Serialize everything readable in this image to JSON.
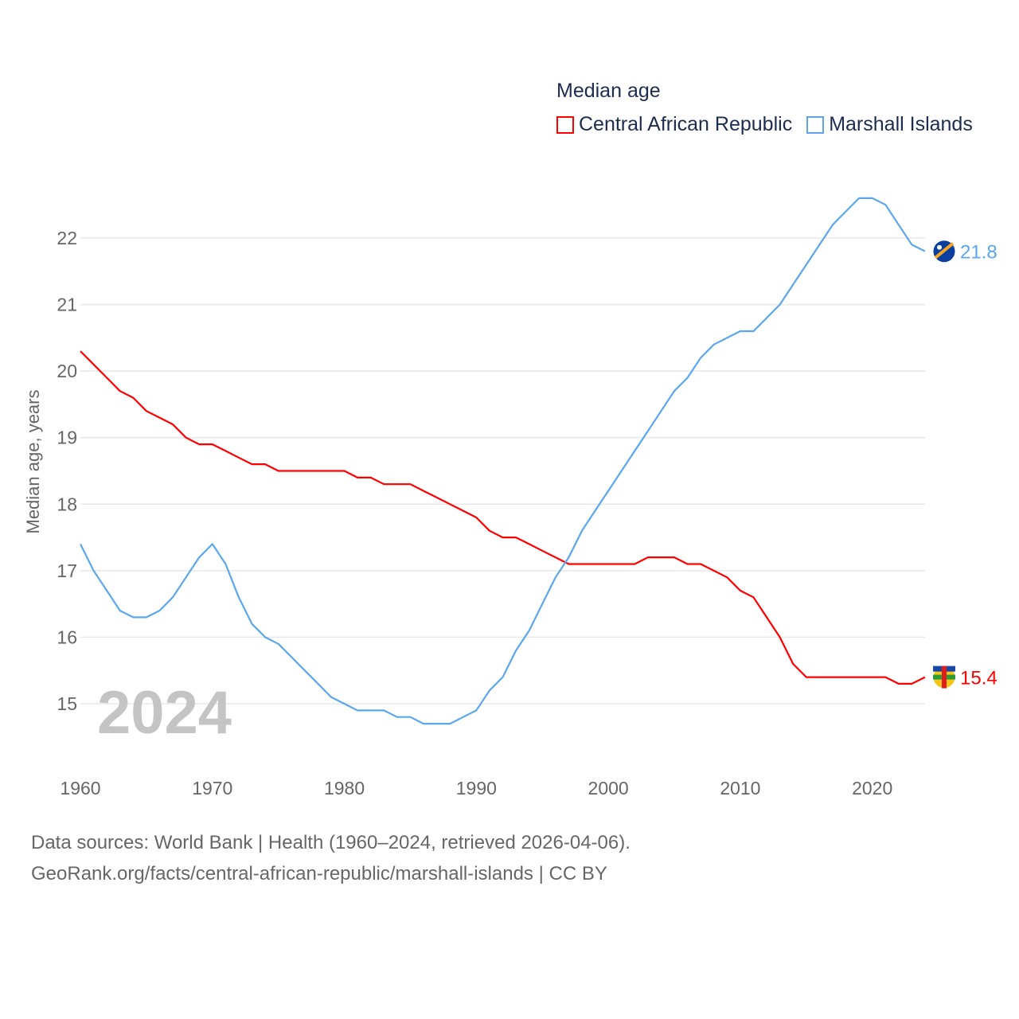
{
  "chart_data": {
    "type": "line",
    "title": "Median age",
    "ylabel": "Median age, years",
    "xlabel": "",
    "xlim": [
      1960,
      2024
    ],
    "ylim": [
      14.3,
      22.8
    ],
    "yticks": [
      15,
      16,
      17,
      18,
      19,
      20,
      21,
      22
    ],
    "xticks": [
      1960,
      1970,
      1980,
      1990,
      2000,
      2010,
      2020
    ],
    "grid": true,
    "legend_position": "top-right",
    "year_label": "2024",
    "x": [
      1960,
      1961,
      1962,
      1963,
      1964,
      1965,
      1966,
      1967,
      1968,
      1969,
      1970,
      1971,
      1972,
      1973,
      1974,
      1975,
      1976,
      1977,
      1978,
      1979,
      1980,
      1981,
      1982,
      1983,
      1984,
      1985,
      1986,
      1987,
      1988,
      1989,
      1990,
      1991,
      1992,
      1993,
      1994,
      1995,
      1996,
      1997,
      1998,
      1999,
      2000,
      2001,
      2002,
      2003,
      2004,
      2005,
      2006,
      2007,
      2008,
      2009,
      2010,
      2011,
      2012,
      2013,
      2014,
      2015,
      2016,
      2017,
      2018,
      2019,
      2020,
      2021,
      2022,
      2023,
      2024
    ],
    "series": [
      {
        "name": "Central African Republic",
        "color": "#ff0000",
        "end_label": "15.4",
        "values": [
          20.3,
          20.1,
          19.9,
          19.7,
          19.6,
          19.4,
          19.3,
          19.2,
          19.0,
          18.9,
          18.9,
          18.8,
          18.7,
          18.6,
          18.6,
          18.5,
          18.5,
          18.5,
          18.5,
          18.5,
          18.5,
          18.4,
          18.4,
          18.3,
          18.3,
          18.3,
          18.2,
          18.1,
          18.0,
          17.9,
          17.8,
          17.6,
          17.5,
          17.5,
          17.4,
          17.3,
          17.2,
          17.1,
          17.1,
          17.1,
          17.1,
          17.1,
          17.1,
          17.2,
          17.2,
          17.2,
          17.1,
          17.1,
          17.0,
          16.9,
          16.7,
          16.6,
          16.3,
          16.0,
          15.6,
          15.4,
          15.4,
          15.4,
          15.4,
          15.4,
          15.4,
          15.4,
          15.3,
          15.3,
          15.4
        ]
      },
      {
        "name": "Marshall Islands",
        "color": "#5ba7ee",
        "end_label": "21.8",
        "values": [
          17.4,
          17.0,
          16.7,
          16.4,
          16.3,
          16.3,
          16.4,
          16.6,
          16.9,
          17.2,
          17.4,
          17.1,
          16.6,
          16.2,
          16.0,
          15.9,
          15.7,
          15.5,
          15.3,
          15.1,
          15.0,
          14.9,
          14.9,
          14.9,
          14.8,
          14.8,
          14.7,
          14.7,
          14.7,
          14.8,
          14.9,
          15.2,
          15.4,
          15.8,
          16.1,
          16.5,
          16.9,
          17.2,
          17.6,
          17.9,
          18.2,
          18.5,
          18.8,
          19.1,
          19.4,
          19.7,
          19.9,
          20.2,
          20.4,
          20.5,
          20.6,
          20.6,
          20.8,
          21.0,
          21.3,
          21.6,
          21.9,
          22.2,
          22.4,
          22.6,
          22.6,
          22.5,
          22.2,
          21.9,
          21.8
        ]
      }
    ]
  },
  "footer": {
    "line1": "Data sources: World Bank | Health (1960–2024, retrieved 2026-04-06).",
    "line2": "GeoRank.org/facts/central-african-republic/marshall-islands | CC BY"
  }
}
